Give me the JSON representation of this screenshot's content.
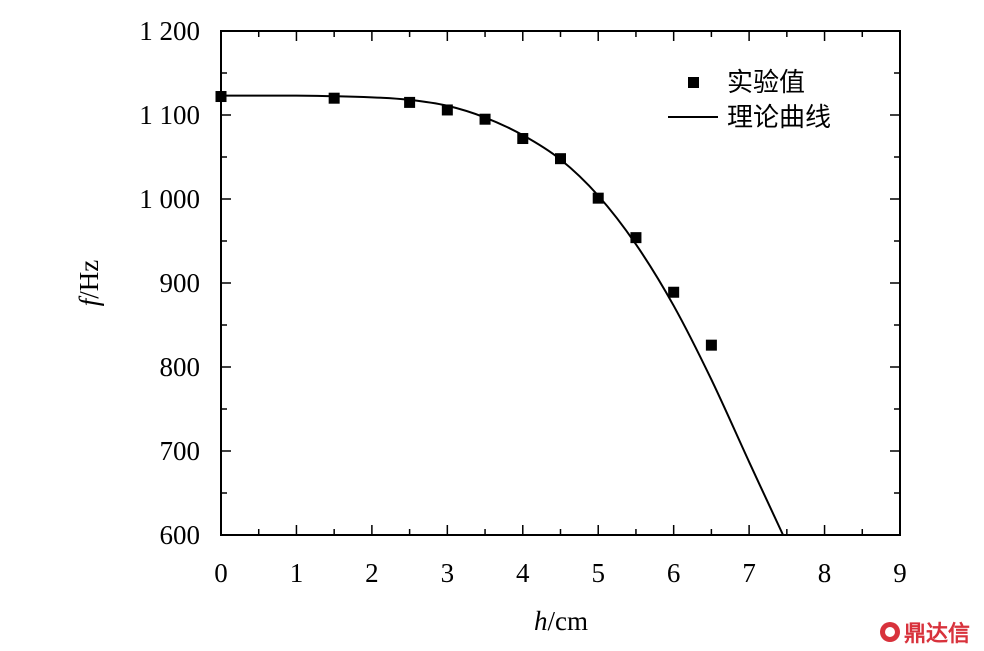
{
  "chart_data": {
    "type": "scatter",
    "xlabel_var": "h",
    "xlabel_unit": "/cm",
    "ylabel_var": "f",
    "ylabel_unit": "/Hz",
    "xlim": [
      0,
      9
    ],
    "ylim": [
      600,
      1200
    ],
    "x_ticks": [
      "0",
      "1",
      "2",
      "3",
      "4",
      "5",
      "6",
      "7",
      "8",
      "9"
    ],
    "y_ticks": [
      "600",
      "700",
      "800",
      "900",
      "1 000",
      "1 100",
      "1 200"
    ],
    "grid": false,
    "legend_position": "top-right",
    "series": [
      {
        "name": "实验值",
        "kind": "markers",
        "points": [
          {
            "x": 0,
            "y": 1122
          },
          {
            "x": 1.5,
            "y": 1120
          },
          {
            "x": 2.5,
            "y": 1115
          },
          {
            "x": 3,
            "y": 1106
          },
          {
            "x": 3.5,
            "y": 1095
          },
          {
            "x": 4,
            "y": 1072
          },
          {
            "x": 4.5,
            "y": 1048
          },
          {
            "x": 5,
            "y": 1001
          },
          {
            "x": 5.5,
            "y": 954
          },
          {
            "x": 6,
            "y": 889
          },
          {
            "x": 6.5,
            "y": 826
          }
        ]
      },
      {
        "name": "理论曲线",
        "kind": "line",
        "points": [
          {
            "x": 0,
            "y": 1123
          },
          {
            "x": 1,
            "y": 1123
          },
          {
            "x": 2,
            "y": 1121
          },
          {
            "x": 2.5,
            "y": 1118
          },
          {
            "x": 3,
            "y": 1111
          },
          {
            "x": 3.5,
            "y": 1097
          },
          {
            "x": 4,
            "y": 1076
          },
          {
            "x": 4.5,
            "y": 1047
          },
          {
            "x": 5,
            "y": 1004
          },
          {
            "x": 5.5,
            "y": 946
          },
          {
            "x": 6,
            "y": 873
          },
          {
            "x": 6.5,
            "y": 785
          },
          {
            "x": 7,
            "y": 687
          },
          {
            "x": 7.45,
            "y": 600
          }
        ]
      }
    ]
  },
  "watermark": {
    "text": "鼎达信",
    "color": "#d8323c"
  }
}
